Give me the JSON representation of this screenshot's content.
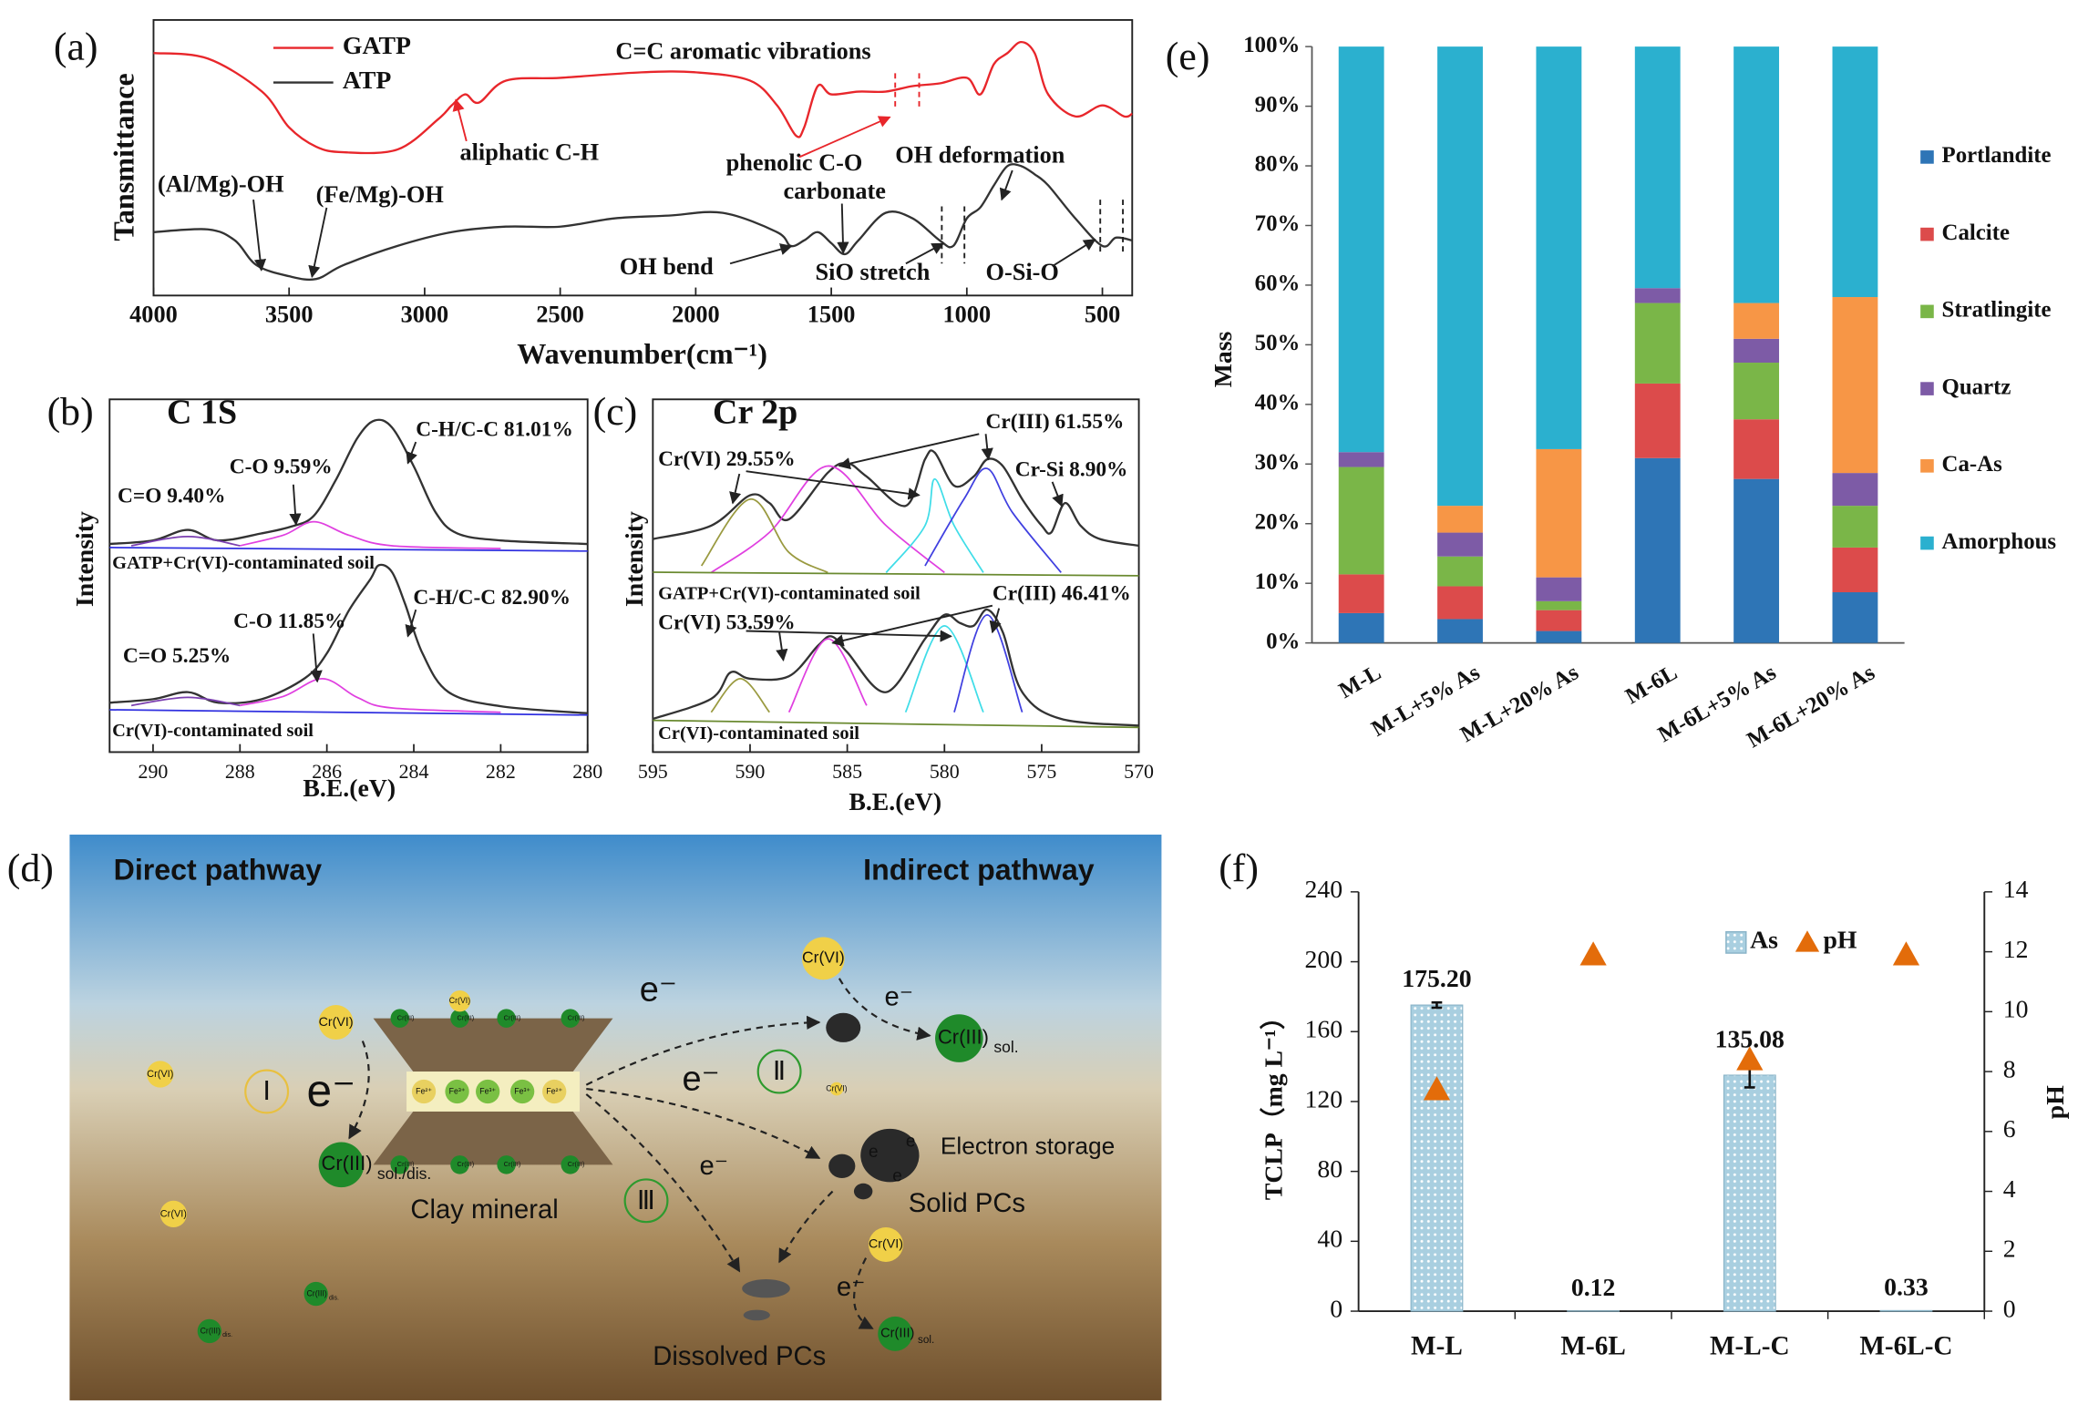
{
  "chart_data": [
    {
      "type": "line",
      "panel": "(a)",
      "xlabel": "Wavenumber(cm⁻¹)",
      "ylabel": "Tansmittance",
      "xlim": [
        4000,
        390
      ],
      "xticks": [
        4000,
        3500,
        3000,
        2500,
        2000,
        1500,
        1000,
        500
      ],
      "ylim": [
        0,
        100
      ],
      "series": [
        {
          "name": "GATP",
          "color": "#e8262b",
          "x": [
            4000,
            3800,
            3600,
            3500,
            3400,
            3300,
            3100,
            2950,
            2900,
            2850,
            2800,
            2700,
            2500,
            2200,
            2000,
            1800,
            1700,
            1630,
            1600,
            1550,
            1500,
            1400,
            1300,
            1200,
            1100,
            1000,
            950,
            900,
            850,
            800,
            750,
            700,
            600,
            500,
            420,
            390
          ],
          "values": [
            88,
            86,
            74,
            61,
            54,
            52,
            53,
            64,
            69,
            73,
            70,
            78,
            79,
            81,
            81,
            78,
            69,
            58,
            61,
            76,
            73,
            74,
            74,
            76,
            77,
            79,
            73,
            84,
            88,
            92,
            88,
            73,
            65,
            69,
            65,
            66
          ]
        },
        {
          "name": "ATP",
          "color": "#333333",
          "x": [
            4000,
            3800,
            3700,
            3620,
            3500,
            3400,
            3300,
            3100,
            2900,
            2700,
            2500,
            2300,
            2100,
            1900,
            1700,
            1650,
            1600,
            1550,
            1500,
            1450,
            1400,
            1300,
            1200,
            1100,
            1050,
            1000,
            950,
            900,
            850,
            800,
            750,
            700,
            600,
            500,
            450,
            390
          ],
          "values": [
            23,
            24,
            20,
            11,
            7,
            6,
            11,
            18,
            23,
            25,
            25,
            28,
            29,
            30,
            23,
            18,
            20,
            23,
            19,
            15,
            20,
            30,
            28,
            20,
            18,
            28,
            32,
            40,
            47,
            47,
            44,
            40,
            28,
            18,
            21,
            20
          ]
        }
      ],
      "annotations": [
        {
          "text": "C=C aromatic vibrations",
          "color": "#e8262b"
        },
        {
          "text": "aliphatic C-H",
          "color": "#e8262b"
        },
        {
          "text": "phenolic C-O",
          "color": "#e8262b"
        },
        {
          "text": "OH deformation",
          "color": "#111111"
        },
        {
          "text": "(Al/Mg)-OH",
          "color": "#111111"
        },
        {
          "text": "(Fe/Mg)-OH",
          "color": "#111111"
        },
        {
          "text": "carbonate",
          "color": "#111111"
        },
        {
          "text": "OH bend",
          "color": "#111111"
        },
        {
          "text": "SiO stretch",
          "color": "#111111"
        },
        {
          "text": "O-Si-O",
          "color": "#111111"
        }
      ]
    },
    {
      "type": "line",
      "panel": "(b)",
      "title": "C 1S",
      "xlabel": "B.E.(eV)",
      "ylabel": "Intensity",
      "xlim": [
        291,
        280
      ],
      "xticks": [
        290,
        288,
        286,
        284,
        282,
        280
      ],
      "ylim": [
        0,
        100
      ],
      "series": [
        {
          "color": "#333333",
          "x": [
            291,
            290,
            289.2,
            288.5,
            287.5,
            286.8,
            286.3,
            285.8,
            285.3,
            284.9,
            284.5,
            284,
            283.5,
            283,
            282,
            280
          ],
          "values": [
            59,
            60,
            63,
            60,
            62,
            64,
            67,
            77,
            89,
            94,
            92,
            81,
            68,
            62,
            60,
            59
          ]
        },
        {
          "color": "#333333",
          "x": [
            291,
            290,
            289.2,
            288.5,
            287.5,
            286.5,
            286,
            285.5,
            285,
            284.8,
            284.5,
            284.2,
            283.8,
            283.2,
            282,
            280
          ],
          "values": [
            14,
            15,
            17,
            14,
            15,
            21,
            28,
            40,
            49,
            53,
            51,
            42,
            28,
            17,
            13,
            11
          ]
        },
        {
          "color": "#e040e0",
          "x": [
            288,
            287,
            286.3,
            285.5,
            284.5,
            282
          ],
          "values": [
            58.5,
            61.5,
            65.3,
            61.5,
            58.5,
            57.7
          ]
        },
        {
          "color": "#e040e0",
          "x": [
            288,
            287,
            286.1,
            285.3,
            284.5,
            282
          ],
          "values": [
            13.2,
            15.8,
            20.8,
            15.5,
            12.5,
            11.3
          ]
        },
        {
          "color": "#7b3fb0",
          "x": [
            290.5,
            289.2,
            288
          ],
          "values": [
            58.5,
            61.1,
            58.5
          ]
        },
        {
          "color": "#7b3fb0",
          "x": [
            290.5,
            289.2,
            288
          ],
          "values": [
            13.2,
            15.5,
            13.2
          ]
        },
        {
          "color": "#3030e0",
          "x": [
            291,
            280
          ],
          "values": [
            58,
            57
          ]
        },
        {
          "color": "#3030e0",
          "x": [
            291,
            280
          ],
          "values": [
            12,
            10.5
          ]
        }
      ],
      "annotations": [
        {
          "text": "C=O 9.40%",
          "color": "#111111"
        },
        {
          "text": "C-O 9.59%",
          "color": "#111111"
        },
        {
          "text": "C-H/C-C 81.01%",
          "color": "#111111"
        },
        {
          "text": "GATP+Cr(VI)-contaminated soil",
          "color": "#2b2bd6"
        },
        {
          "text": "C=O 5.25%",
          "color": "#111111"
        },
        {
          "text": "C-O 11.85%",
          "color": "#111111"
        },
        {
          "text": "C-H/C-C 82.90%",
          "color": "#111111"
        },
        {
          "text": "Cr(VI)-contaminated soil",
          "color": "#2b2bd6"
        }
      ]
    },
    {
      "type": "line",
      "panel": "(c)",
      "title": "Cr 2p",
      "xlabel": "B.E.(eV)",
      "ylabel": "Intensity",
      "xlim": [
        595,
        570
      ],
      "xticks": [
        595,
        590,
        585,
        580,
        575,
        570
      ],
      "ylim": [
        0,
        100
      ],
      "series": [
        {
          "color": "#333333",
          "x": [
            595,
            592,
            590,
            589,
            588,
            586,
            585,
            584,
            582,
            581,
            580.5,
            579.5,
            578.5,
            577.8,
            577,
            576,
            575,
            574.5,
            573.8,
            573,
            572,
            570
          ],
          "values": [
            60.4,
            64.2,
            72.8,
            70.6,
            66,
            79.2,
            81.9,
            78.1,
            69.8,
            83,
            84.9,
            75.5,
            78.1,
            83,
            81.1,
            71.7,
            64.2,
            62.3,
            70.6,
            64.2,
            60.4,
            58.5
          ]
        },
        {
          "color": "#333333",
          "x": [
            595,
            592,
            591,
            590,
            588,
            586.5,
            585.8,
            585,
            583,
            581,
            580,
            579.2,
            578.5,
            577.8,
            577,
            576,
            574,
            570
          ],
          "values": [
            9.4,
            15.1,
            22.6,
            20.8,
            21.5,
            30.2,
            32.8,
            28.3,
            17,
            32.1,
            38.9,
            36.6,
            35.8,
            40.4,
            34,
            17,
            9.4,
            7.5
          ]
        },
        {
          "color": "#e040e0",
          "x": [
            592,
            589,
            586,
            583,
            580
          ],
          "values": [
            50.9,
            62.3,
            81.1,
            64.2,
            50.9
          ]
        },
        {
          "color": "#40dde8",
          "x": [
            583,
            581,
            580.5,
            579.5,
            578
          ],
          "values": [
            50.9,
            64.2,
            77.4,
            64.2,
            50.9
          ]
        },
        {
          "color": "#4040e0",
          "x": [
            581,
            579,
            577.8,
            576.5,
            574
          ],
          "values": [
            52.8,
            71.7,
            80.4,
            67.9,
            50.9
          ]
        },
        {
          "color": "#9a9a40",
          "x": [
            592.5,
            590,
            588,
            586
          ],
          "values": [
            52.8,
            71.7,
            56.6,
            50.9
          ]
        },
        {
          "color": "#e040e0",
          "x": [
            588,
            586,
            584
          ],
          "values": [
            11.3,
            32.1,
            13.2
          ]
        },
        {
          "color": "#40dde8",
          "x": [
            582,
            580,
            578
          ],
          "values": [
            11.3,
            35.8,
            11.3
          ]
        },
        {
          "color": "#4040e0",
          "x": [
            579.5,
            577.8,
            576
          ],
          "values": [
            11.3,
            38.9,
            11.3
          ]
        },
        {
          "color": "#9a9a40",
          "x": [
            592,
            590.5,
            589
          ],
          "values": [
            11.3,
            20.8,
            11.3
          ]
        },
        {
          "color": "#6a8a30",
          "x": [
            595,
            570
          ],
          "values": [
            51,
            50
          ]
        },
        {
          "color": "#6a8a30",
          "x": [
            595,
            570
          ],
          "values": [
            9,
            7
          ]
        }
      ],
      "annotations": [
        {
          "text": "Cr(VI) 29.55%",
          "color": "#111111"
        },
        {
          "text": "Cr(III) 61.55%",
          "color": "#111111"
        },
        {
          "text": "Cr-Si 8.90%",
          "color": "#111111"
        },
        {
          "text": "GATP+Cr(VI)-contaminated soil",
          "color": "#2b2bd6"
        },
        {
          "text": "Cr(VI) 53.59%",
          "color": "#111111"
        },
        {
          "text": "Cr(III) 46.41%",
          "color": "#111111"
        },
        {
          "text": "Cr(VI)-contaminated soil",
          "color": "#2b2bd6"
        }
      ]
    },
    {
      "type": "stacked_bar",
      "panel": "(e)",
      "ylabel": "Mass",
      "categories": [
        "M-L",
        "M-L+5% As",
        "M-L+20% As",
        "M-6L",
        "M-6L+5% As",
        "M-6L+20% As"
      ],
      "ylim": [
        0,
        100
      ],
      "yticks": [
        {
          "value": 0,
          "label": "0%"
        },
        {
          "value": 10,
          "label": "10%"
        },
        {
          "value": 20,
          "label": "20%"
        },
        {
          "value": 30,
          "label": "30%"
        },
        {
          "value": 40,
          "label": "40%"
        },
        {
          "value": 50,
          "label": "50%"
        },
        {
          "value": 60,
          "label": "60%"
        },
        {
          "value": 70,
          "label": "70%"
        },
        {
          "value": 80,
          "label": "80%"
        },
        {
          "value": 90,
          "label": "90%"
        },
        {
          "value": 100,
          "label": "100%"
        }
      ],
      "series": [
        {
          "name": "Portlandite",
          "color": "#2e75b6",
          "values": [
            5,
            4,
            2,
            31,
            27.5,
            8.5
          ]
        },
        {
          "name": "Calcite",
          "color": "#dc4b4b",
          "values": [
            6.5,
            5.5,
            3.5,
            12.5,
            10,
            7.5
          ]
        },
        {
          "name": "Stratlingite",
          "color": "#7ab648",
          "values": [
            18,
            5,
            1.5,
            13.5,
            9.5,
            7
          ]
        },
        {
          "name": "Quartz",
          "color": "#7d5ba6",
          "values": [
            2.5,
            4,
            4,
            2.5,
            4,
            5.5
          ]
        },
        {
          "name": "Ca-As",
          "color": "#f79646",
          "values": [
            0,
            4.5,
            21.5,
            0,
            6,
            29.5
          ]
        },
        {
          "name": "Amorphous",
          "color": "#2bb0cf",
          "values": [
            68,
            77,
            67.5,
            40.5,
            43,
            42
          ]
        }
      ],
      "legend": "right"
    },
    {
      "type": "bar",
      "panel": "(f)",
      "ylabel": "TCLP（mg L⁻¹）",
      "y2label": "pH",
      "categories": [
        "M-L",
        "M-6L",
        "M-L-C",
        "M-6L-C"
      ],
      "ylim": [
        0,
        240
      ],
      "yticks": [
        0,
        40,
        80,
        120,
        160,
        200,
        240
      ],
      "y2lim": [
        0,
        14
      ],
      "y2ticks": [
        0,
        2,
        4,
        6,
        8,
        10,
        12,
        14
      ],
      "series": [
        {
          "name": "As",
          "color": "#a9cfe0",
          "values": [
            175.2,
            0.12,
            135.08,
            0.33
          ],
          "value_labels": [
            "175.20",
            "0.12",
            "135.08",
            "0.33"
          ],
          "errors": [
            1.5,
            null,
            7,
            null
          ]
        },
        {
          "name": "pH",
          "color": "#e36c0a",
          "axis": "y2",
          "marker": "triangle",
          "values": [
            7.4,
            11.9,
            8.4,
            11.9
          ]
        }
      ],
      "legend": "top-right"
    }
  ],
  "diagram": {
    "label": "(d)",
    "direct_pathway": "Direct pathway",
    "indirect_pathway": "Indirect pathway",
    "cr6": "Cr(VI)",
    "cr3": "Cr(III)",
    "sol": "sol.",
    "sol_dis": "sol./dis.",
    "dis": "dis.",
    "fe2": "Fe²⁺",
    "fe3": "Fe³⁺",
    "e": "e⁻",
    "e_plain": "e",
    "clay_mineral": "Clay mineral",
    "solid_pcs": "Solid PCs",
    "dissolved_pcs": "Dissolved PCs",
    "electron_storage": "Electron storage",
    "pathway_1": "Ⅰ",
    "pathway_2": "Ⅱ",
    "pathway_3": "Ⅲ"
  }
}
